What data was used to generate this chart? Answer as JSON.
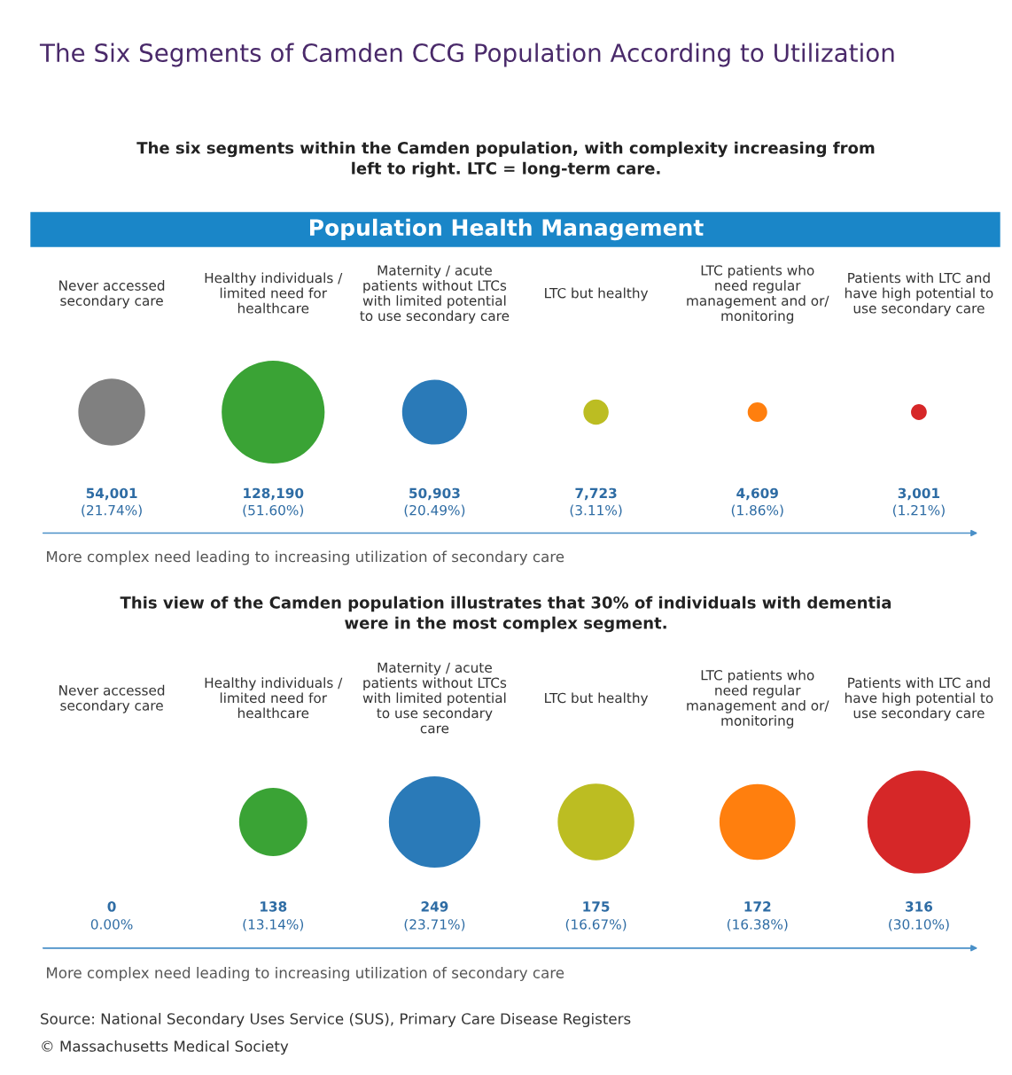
{
  "chart_data": [
    {
      "type": "other",
      "title": "The Six Segments of Camden CCG Population According to Utilization",
      "subtitle": "The six segments within the Camden population, with complexity increasing from\nleft to right. LTC = long-term care.",
      "annotations": [
        "Population Health Management"
      ],
      "xlabel": "More complex need leading to increasing utilization of secondary care",
      "categories": [
        "Never accessed\nsecondary care",
        "Healthy individuals /\nlimited need for\nhealthcare",
        "Maternity / acute\npatients without LTCs\nwith limited potential\nto use secondary care",
        "LTC but healthy",
        "LTC patients who\nneed regular\nmanagement and or/\nmonitoring",
        "Patients with LTC and\nhave high potential to\nuse secondary care"
      ],
      "values": [
        54001,
        128190,
        50903,
        7723,
        4609,
        3001
      ],
      "value_labels": [
        "54,001\n(21.74%)",
        "128,190\n(51.60%)",
        "50,903\n(20.49%)",
        "7,723\n(3.11%)",
        "4,609\n(1.86%)",
        "3,001\n(1.21%)"
      ],
      "colors": [
        "#808080",
        "#3aa335",
        "#2a7ab8",
        "#bcbd22",
        "#ff7f0e",
        "#d62728"
      ]
    },
    {
      "type": "other",
      "subtitle": "This view of the Camden population illustrates that 30% of individuals with dementia\nwere in the most complex segment.",
      "xlabel": "More complex need leading to increasing utilization of secondary care",
      "annotations": [
        "Source: National Secondary Uses Service (SUS), Primary Care Disease Registers",
        "© Massachusetts Medical Society"
      ],
      "categories": [
        "Never accessed\nsecondary care",
        "Healthy individuals /\nlimited need for\nhealthcare",
        "Maternity / acute\npatients without LTCs\nwith limited potential\nto use secondary\ncare",
        "LTC but healthy",
        "LTC patients who\nneed regular\nmanagement and or/\nmonitoring",
        "Patients with LTC and\nhave high potential to\nuse secondary care"
      ],
      "values": [
        0,
        138,
        249,
        175,
        172,
        316
      ],
      "value_labels": [
        "0\n0.00%",
        "138\n(13.14%)",
        "249\n(23.71%)",
        "175\n(16.67%)",
        "172\n(16.38%)",
        "316\n(30.10%)"
      ],
      "colors": [
        "#808080",
        "#3aa335",
        "#2a7ab8",
        "#bcbd22",
        "#ff7f0e",
        "#d62728"
      ]
    }
  ]
}
